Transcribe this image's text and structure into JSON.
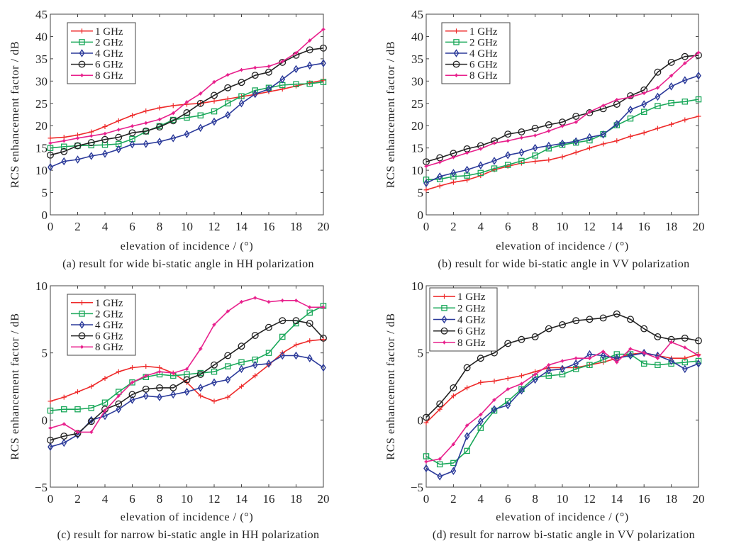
{
  "chart_data": [
    {
      "type": "line",
      "panel": "a",
      "caption": "(a) result for wide bi-static angle in HH polarization",
      "xlabel": "elevation of incidence / (°)",
      "ylabel": "RCS enhancement factor / dB",
      "xlim": [
        0,
        20
      ],
      "ylim": [
        0,
        45
      ],
      "xticks": [
        0,
        2,
        4,
        6,
        8,
        10,
        12,
        14,
        16,
        18,
        20
      ],
      "yticks": [
        0,
        5,
        10,
        15,
        20,
        25,
        30,
        35,
        40,
        45
      ],
      "legend_position": "top-left",
      "x": [
        0,
        1,
        2,
        3,
        4,
        5,
        6,
        7,
        8,
        9,
        10,
        11,
        12,
        13,
        14,
        15,
        16,
        17,
        18,
        19,
        20
      ],
      "series": [
        {
          "name": "1 GHz",
          "color": "#ee2a2a",
          "marker": "plus",
          "values": [
            17.2,
            17.4,
            17.9,
            18.6,
            19.8,
            21.1,
            22.3,
            23.3,
            24.0,
            24.5,
            24.8,
            25.0,
            25.5,
            26.0,
            26.5,
            27.0,
            27.6,
            28.2,
            28.9,
            29.6,
            30.2
          ]
        },
        {
          "name": "2 GHz",
          "color": "#1aa85a",
          "marker": "square",
          "values": [
            15.0,
            15.3,
            15.5,
            15.6,
            15.7,
            15.9,
            17.0,
            18.7,
            19.9,
            21.3,
            21.8,
            22.3,
            23.2,
            25.0,
            26.6,
            27.9,
            28.5,
            29.1,
            29.3,
            29.4,
            29.8
          ]
        },
        {
          "name": "4 GHz",
          "color": "#2b3a9a",
          "marker": "diamond",
          "values": [
            10.7,
            12.0,
            12.4,
            13.2,
            13.7,
            14.7,
            15.8,
            15.9,
            16.4,
            17.2,
            18.1,
            19.5,
            20.9,
            22.4,
            25.0,
            27.1,
            28.2,
            30.4,
            32.7,
            33.5,
            34.0
          ]
        },
        {
          "name": "6 GHz",
          "color": "#222222",
          "marker": "circle",
          "values": [
            13.4,
            14.2,
            15.5,
            16.2,
            16.9,
            17.4,
            18.4,
            18.8,
            19.7,
            21.1,
            22.9,
            25.0,
            26.8,
            28.5,
            29.7,
            31.3,
            32.0,
            34.2,
            35.8,
            37.0,
            37.4
          ]
        },
        {
          "name": "8 GHz",
          "color": "#e8208c",
          "marker": "star",
          "values": [
            16.1,
            16.6,
            17.2,
            17.7,
            18.2,
            19.1,
            19.9,
            20.6,
            21.4,
            22.8,
            25.3,
            27.2,
            29.8,
            31.4,
            32.5,
            33.0,
            33.3,
            34.4,
            36.3,
            39.1,
            41.6
          ]
        }
      ]
    },
    {
      "type": "line",
      "panel": "b",
      "caption": "(b) result for wide bi-static angle in VV polarization",
      "xlabel": "elevation of incidence / (°)",
      "ylabel": "RCS enhancement factor / dB",
      "xlim": [
        0,
        20
      ],
      "ylim": [
        0,
        45
      ],
      "xticks": [
        0,
        2,
        4,
        6,
        8,
        10,
        12,
        14,
        16,
        18,
        20
      ],
      "yticks": [
        0,
        5,
        10,
        15,
        20,
        25,
        30,
        35,
        40,
        45
      ],
      "legend_position": "top-left",
      "x": [
        0,
        1,
        2,
        3,
        4,
        5,
        6,
        7,
        8,
        9,
        10,
        11,
        12,
        13,
        14,
        15,
        16,
        17,
        18,
        19,
        20
      ],
      "series": [
        {
          "name": "1 GHz",
          "color": "#ee2a2a",
          "marker": "plus",
          "values": [
            5.6,
            6.5,
            7.3,
            7.8,
            8.8,
            10.1,
            10.9,
            11.6,
            12.0,
            12.3,
            13.0,
            14.0,
            15.0,
            15.9,
            16.6,
            17.6,
            18.4,
            19.4,
            20.3,
            21.3,
            22.1
          ]
        },
        {
          "name": "2 GHz",
          "color": "#1aa85a",
          "marker": "square",
          "values": [
            7.9,
            8.0,
            8.6,
            8.8,
            9.4,
            10.4,
            11.2,
            12.1,
            13.3,
            14.9,
            15.7,
            16.2,
            16.7,
            18.1,
            20.1,
            21.6,
            23.1,
            24.4,
            25.1,
            25.4,
            25.9
          ]
        },
        {
          "name": "4 GHz",
          "color": "#2b3a9a",
          "marker": "diamond",
          "values": [
            7.1,
            8.6,
            9.4,
            10.1,
            11.1,
            12.1,
            13.4,
            14.0,
            15.0,
            15.5,
            16.0,
            16.5,
            17.4,
            18.0,
            20.4,
            23.6,
            24.8,
            26.5,
            28.8,
            30.2,
            31.2
          ]
        },
        {
          "name": "6 GHz",
          "color": "#222222",
          "marker": "circle",
          "values": [
            11.9,
            12.8,
            13.8,
            14.8,
            15.5,
            16.6,
            18.1,
            18.6,
            19.4,
            20.2,
            20.8,
            22.1,
            22.9,
            23.8,
            24.8,
            26.7,
            28.0,
            32.0,
            34.2,
            35.5,
            35.8
          ]
        },
        {
          "name": "8 GHz",
          "color": "#e8208c",
          "marker": "star",
          "values": [
            10.9,
            11.8,
            12.9,
            13.9,
            14.8,
            16.1,
            16.6,
            17.3,
            17.8,
            18.8,
            19.9,
            20.8,
            23.1,
            24.5,
            25.8,
            26.4,
            27.3,
            28.5,
            31.2,
            34.0,
            36.4
          ]
        }
      ]
    },
    {
      "type": "line",
      "panel": "c",
      "caption": "(c) result for narrow bi-static angle in HH polarization",
      "xlabel": "elevation of incidence / (°)",
      "ylabel": "RCS enhancement factor / dB",
      "xlim": [
        0,
        20
      ],
      "ylim": [
        -5,
        10
      ],
      "xticks": [
        0,
        2,
        4,
        6,
        8,
        10,
        12,
        14,
        16,
        18,
        20
      ],
      "yticks": [
        -5,
        0,
        5,
        10
      ],
      "legend_position": "top-left",
      "x": [
        0,
        1,
        2,
        3,
        4,
        5,
        6,
        7,
        8,
        9,
        10,
        11,
        12,
        13,
        14,
        15,
        16,
        17,
        18,
        19,
        20
      ],
      "series": [
        {
          "name": "1 GHz",
          "color": "#ee2a2a",
          "marker": "plus",
          "values": [
            1.4,
            1.7,
            2.1,
            2.5,
            3.1,
            3.6,
            3.9,
            4.0,
            3.9,
            3.5,
            2.8,
            1.8,
            1.4,
            1.7,
            2.5,
            3.3,
            4.1,
            5.0,
            5.6,
            5.9,
            6.0
          ]
        },
        {
          "name": "2 GHz",
          "color": "#1aa85a",
          "marker": "square",
          "values": [
            0.7,
            0.8,
            0.8,
            0.9,
            1.3,
            2.1,
            2.8,
            3.2,
            3.4,
            3.3,
            3.4,
            3.5,
            3.6,
            4.0,
            4.3,
            4.5,
            5.0,
            6.2,
            7.2,
            8.0,
            8.5
          ]
        },
        {
          "name": "4 GHz",
          "color": "#2b3a9a",
          "marker": "diamond",
          "values": [
            -2.0,
            -1.7,
            -1.1,
            0.0,
            0.3,
            0.8,
            1.5,
            1.8,
            1.7,
            1.9,
            2.1,
            2.4,
            2.8,
            3.0,
            3.8,
            4.1,
            4.2,
            4.8,
            4.8,
            4.6,
            3.9
          ]
        },
        {
          "name": "6 GHz",
          "color": "#222222",
          "marker": "circle",
          "values": [
            -1.5,
            -1.2,
            -1.0,
            -0.1,
            0.8,
            1.2,
            1.9,
            2.3,
            2.4,
            2.4,
            3.0,
            3.4,
            4.1,
            4.8,
            5.5,
            6.3,
            6.9,
            7.4,
            7.4,
            7.2,
            6.1
          ]
        },
        {
          "name": "8 GHz",
          "color": "#e8208c",
          "marker": "star",
          "values": [
            -0.6,
            -0.3,
            -0.9,
            -0.9,
            0.7,
            1.8,
            2.8,
            3.3,
            3.6,
            3.5,
            3.8,
            5.3,
            7.1,
            8.1,
            8.8,
            9.1,
            8.8,
            8.9,
            8.9,
            8.4,
            8.4
          ]
        }
      ]
    },
    {
      "type": "line",
      "panel": "d",
      "caption": "(d) result for narrow bi-static angle in VV polarization",
      "xlabel": "elevation of incidence / (°)",
      "ylabel": "RCS enhancement factor / dB",
      "xlim": [
        0,
        20
      ],
      "ylim": [
        -5,
        10
      ],
      "xticks": [
        0,
        2,
        4,
        6,
        8,
        10,
        12,
        14,
        16,
        18,
        20
      ],
      "yticks": [
        -5,
        0,
        5,
        10
      ],
      "legend_position": "top-left",
      "x": [
        0,
        1,
        2,
        3,
        4,
        5,
        6,
        7,
        8,
        9,
        10,
        11,
        12,
        13,
        14,
        15,
        16,
        17,
        18,
        19,
        20
      ],
      "series": [
        {
          "name": "1 GHz",
          "color": "#ee2a2a",
          "marker": "plus",
          "values": [
            -0.2,
            0.8,
            1.8,
            2.4,
            2.8,
            2.9,
            3.1,
            3.3,
            3.6,
            3.9,
            3.9,
            3.9,
            4.1,
            4.3,
            4.6,
            4.9,
            5.0,
            4.8,
            4.6,
            4.6,
            4.9
          ]
        },
        {
          "name": "2 GHz",
          "color": "#1aa85a",
          "marker": "square",
          "values": [
            -2.7,
            -3.3,
            -3.2,
            -2.3,
            -0.6,
            0.7,
            1.4,
            2.3,
            3.2,
            3.3,
            3.4,
            3.8,
            4.1,
            4.5,
            4.9,
            4.9,
            4.2,
            4.1,
            4.2,
            4.3,
            4.4
          ]
        },
        {
          "name": "4 GHz",
          "color": "#2b3a9a",
          "marker": "diamond",
          "values": [
            -3.6,
            -4.2,
            -3.8,
            -1.2,
            -0.1,
            0.8,
            1.1,
            2.2,
            3.0,
            3.7,
            3.8,
            4.2,
            4.9,
            4.8,
            4.6,
            4.8,
            5.0,
            4.8,
            4.4,
            3.8,
            4.2
          ]
        },
        {
          "name": "6 GHz",
          "color": "#222222",
          "marker": "circle",
          "values": [
            0.2,
            1.2,
            2.4,
            3.9,
            4.6,
            5.0,
            5.7,
            6.0,
            6.2,
            6.8,
            7.1,
            7.4,
            7.5,
            7.6,
            7.9,
            7.5,
            6.8,
            6.2,
            6.0,
            6.1,
            5.9
          ]
        },
        {
          "name": "8 GHz",
          "color": "#e8208c",
          "marker": "star",
          "values": [
            -3.1,
            -2.9,
            -1.8,
            -0.4,
            0.4,
            1.5,
            2.3,
            2.7,
            3.4,
            4.1,
            4.4,
            4.6,
            4.6,
            5.1,
            4.3,
            5.3,
            5.0,
            4.6,
            5.8,
            5.4,
            4.8
          ]
        }
      ]
    }
  ]
}
